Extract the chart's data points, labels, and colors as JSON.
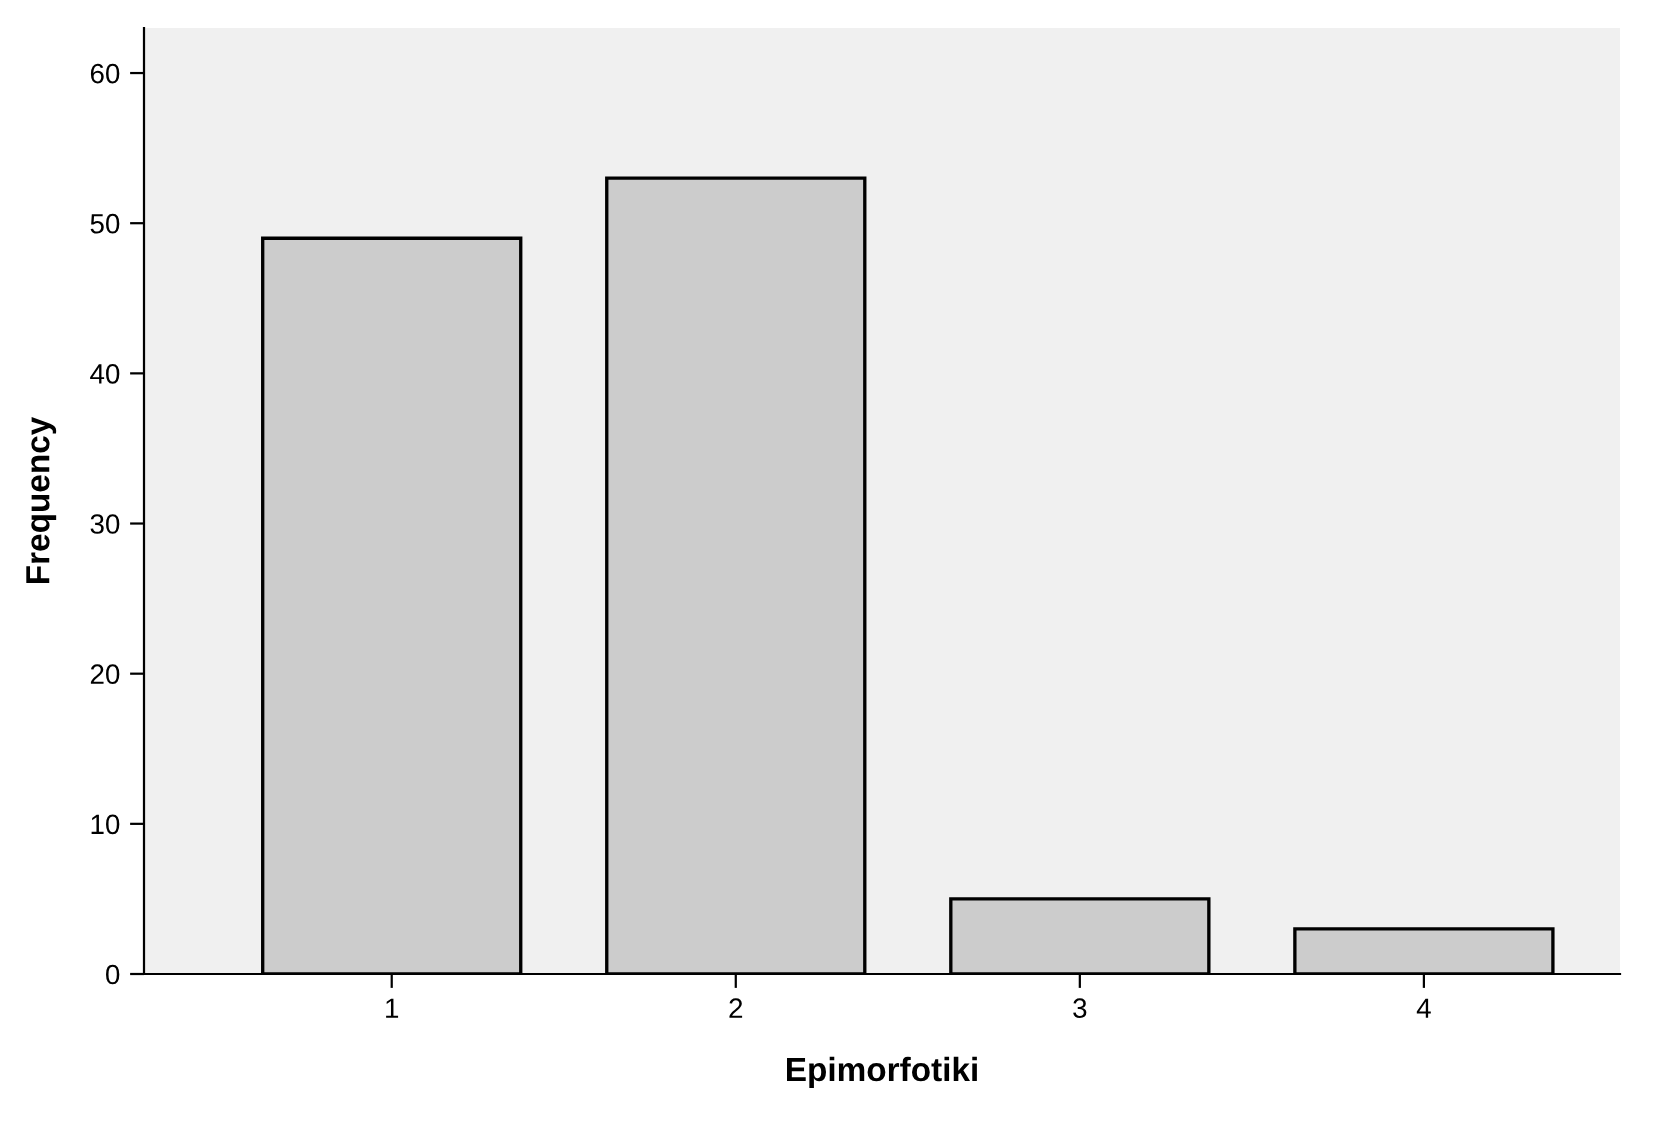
{
  "chart_data": {
    "type": "bar",
    "xlabel": "Epimorfotiki",
    "ylabel": "Frequency",
    "categories": [
      "1",
      "2",
      "3",
      "4"
    ],
    "values": [
      49,
      53,
      5,
      3
    ],
    "color": "#cccccc",
    "ylim": [
      0,
      63
    ],
    "yticks": [
      0,
      10,
      20,
      30,
      40,
      50,
      60
    ],
    "grid": false,
    "legend": false
  }
}
